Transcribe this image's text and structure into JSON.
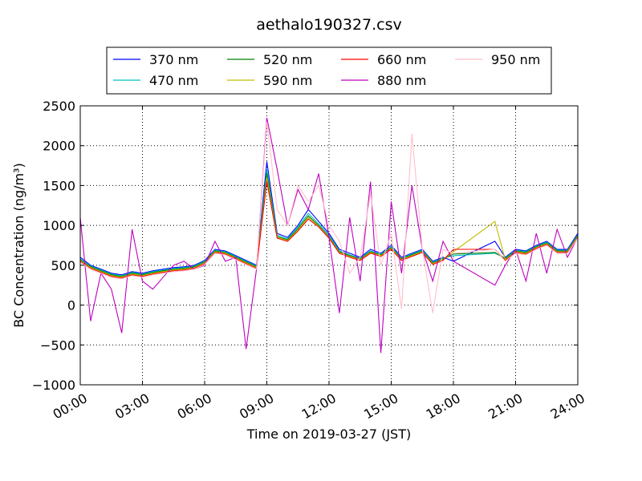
{
  "chart_data": {
    "type": "line",
    "title": "aethalo190327.csv",
    "xlabel": "Time on 2019-03-27 (JST)",
    "ylabel": "BC Concentration (ng/m³)",
    "xlim": [
      "00:00",
      "24:00"
    ],
    "ylim": [
      -1000,
      2500
    ],
    "grid": true,
    "legend_position": "top, above plot",
    "x_ticks": [
      "00:00",
      "03:00",
      "06:00",
      "09:00",
      "12:00",
      "15:00",
      "18:00",
      "21:00",
      "24:00"
    ],
    "y_ticks": [
      "2500",
      "2000",
      "1500",
      "1000",
      "500",
      "0",
      "−500",
      "−1000"
    ],
    "x": [
      "00:00",
      "00:30",
      "01:00",
      "01:30",
      "02:00",
      "02:30",
      "03:00",
      "03:30",
      "04:00",
      "04:30",
      "05:00",
      "05:30",
      "06:00",
      "06:30",
      "07:00",
      "07:30",
      "08:00",
      "08:30",
      "09:00",
      "09:30",
      "10:00",
      "10:30",
      "11:00",
      "11:30",
      "12:00",
      "12:30",
      "13:00",
      "13:30",
      "14:00",
      "14:30",
      "15:00",
      "15:30",
      "16:00",
      "16:30",
      "17:00",
      "17:30",
      "18:00",
      "20:00",
      "20:30",
      "21:00",
      "21:30",
      "22:00",
      "22:30",
      "23:00",
      "23:30",
      "24:00"
    ],
    "series": [
      {
        "name": "370 nm",
        "color": "#0000ff",
        "values": [
          600,
          500,
          450,
          400,
          380,
          420,
          400,
          430,
          450,
          470,
          480,
          500,
          560,
          700,
          680,
          620,
          560,
          500,
          1800,
          900,
          850,
          1000,
          1200,
          1050,
          900,
          700,
          650,
          600,
          700,
          650,
          750,
          600,
          650,
          700,
          550,
          600,
          550,
          800,
          600,
          700,
          680,
          750,
          800,
          700,
          700,
          900
        ]
      },
      {
        "name": "470 nm",
        "color": "#00bfbf",
        "values": [
          580,
          490,
          440,
          390,
          370,
          410,
          390,
          420,
          440,
          460,
          470,
          490,
          550,
          690,
          670,
          610,
          550,
          490,
          1700,
          880,
          830,
          980,
          1150,
          1020,
          880,
          680,
          630,
          590,
          680,
          640,
          730,
          590,
          640,
          690,
          540,
          590,
          620,
          650,
          590,
          690,
          670,
          740,
          790,
          690,
          690,
          880
        ]
      },
      {
        "name": "520 nm",
        "color": "#008000",
        "values": [
          570,
          480,
          430,
          380,
          360,
          400,
          380,
          410,
          430,
          450,
          460,
          480,
          540,
          680,
          660,
          600,
          540,
          480,
          1650,
          860,
          820,
          960,
          1120,
          1000,
          860,
          670,
          620,
          580,
          670,
          630,
          720,
          580,
          630,
          680,
          530,
          580,
          640,
          660,
          580,
          680,
          660,
          730,
          780,
          680,
          680,
          870
        ]
      },
      {
        "name": "590 nm",
        "color": "#bfbf00",
        "values": [
          560,
          470,
          420,
          370,
          350,
          390,
          370,
          400,
          420,
          440,
          450,
          470,
          530,
          670,
          650,
          590,
          530,
          470,
          1600,
          850,
          810,
          940,
          1100,
          990,
          850,
          660,
          610,
          570,
          660,
          620,
          710,
          570,
          620,
          670,
          520,
          570,
          670,
          1050,
          570,
          670,
          650,
          720,
          770,
          670,
          670,
          860
        ]
      },
      {
        "name": "660 nm",
        "color": "#ff0000",
        "values": [
          550,
          460,
          410,
          360,
          340,
          380,
          360,
          390,
          410,
          430,
          440,
          460,
          520,
          660,
          640,
          580,
          520,
          460,
          1550,
          840,
          800,
          930,
          1080,
          980,
          840,
          650,
          600,
          560,
          650,
          610,
          700,
          560,
          610,
          660,
          510,
          560,
          700,
          700,
          560,
          660,
          640,
          710,
          760,
          660,
          660,
          850
        ]
      },
      {
        "name": "880 nm",
        "color": "#bf00bf",
        "values": [
          1100,
          -200,
          400,
          200,
          -350,
          950,
          300,
          200,
          350,
          500,
          550,
          450,
          500,
          800,
          550,
          600,
          -550,
          450,
          2350,
          1700,
          1000,
          1450,
          1200,
          1650,
          850,
          -100,
          1100,
          300,
          1550,
          -600,
          1300,
          400,
          1500,
          700,
          300,
          800,
          550,
          250,
          500,
          700,
          300,
          900,
          400,
          950,
          600,
          850
        ]
      },
      {
        "name": "950 nm",
        "color": "#ffc0cb",
        "values": [
          540,
          450,
          400,
          350,
          330,
          370,
          350,
          380,
          400,
          420,
          430,
          450,
          510,
          650,
          630,
          570,
          510,
          450,
          2300,
          1200,
          1000,
          1500,
          1300,
          1500,
          1000,
          800,
          400,
          600,
          1400,
          500,
          900,
          -50,
          2150,
          700,
          -100,
          700,
          650,
          700,
          550,
          650,
          630,
          700,
          750,
          650,
          650,
          840
        ]
      }
    ]
  }
}
